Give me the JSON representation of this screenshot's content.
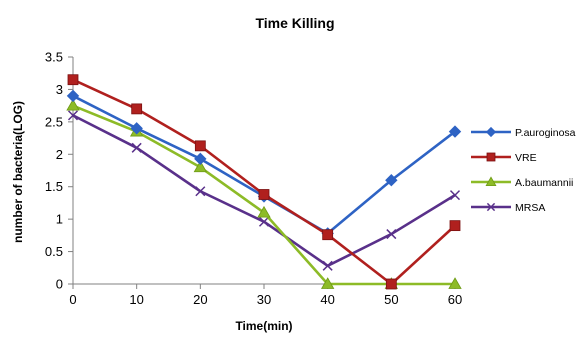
{
  "chart_data": {
    "type": "line",
    "title": "Time Killing",
    "xlabel": "Time(min)",
    "ylabel": "number of bacteria(LOG)",
    "x": [
      0,
      10,
      20,
      30,
      40,
      50,
      60
    ],
    "x_ticks": [
      "0",
      "10",
      "20",
      "30",
      "40",
      "50",
      "60"
    ],
    "y_ticks": [
      "0",
      "0.5",
      "1",
      "1.5",
      "2",
      "2.5",
      "3",
      "3.5"
    ],
    "xlim": [
      0,
      60
    ],
    "ylim": [
      0,
      3.5
    ],
    "grid": false,
    "legend_position": "right",
    "series": [
      {
        "name": "P.auroginosa",
        "color": "#2E63C4",
        "marker": "diamond",
        "values": [
          2.9,
          2.4,
          1.93,
          1.35,
          0.78,
          1.6,
          2.35
        ]
      },
      {
        "name": "VRE",
        "color": "#B0201E",
        "marker": "square",
        "values": [
          3.15,
          2.7,
          2.13,
          1.38,
          0.76,
          0.0,
          0.9
        ]
      },
      {
        "name": "A.baumannii",
        "color": "#8DBB27",
        "marker": "triangle",
        "values": [
          2.75,
          2.35,
          1.8,
          1.1,
          0.0,
          0.0,
          0.0
        ]
      },
      {
        "name": "MRSA",
        "color": "#59308A",
        "marker": "x",
        "values": [
          2.6,
          2.1,
          1.43,
          0.96,
          0.28,
          0.77,
          1.37
        ]
      }
    ]
  }
}
